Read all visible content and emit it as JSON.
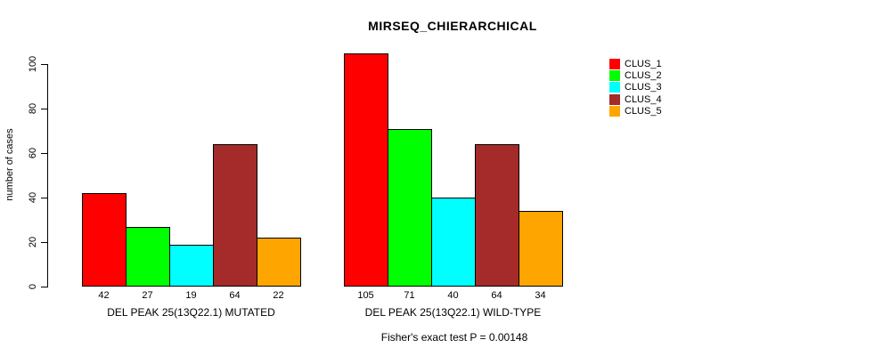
{
  "chart_data": {
    "type": "bar",
    "title": "MIRSEQ_CHIERARCHICAL",
    "ylabel": "number of cases",
    "xlabel": "",
    "annotation": "Fisher's exact test P = 0.00148",
    "series": [
      {
        "name": "CLUS_1",
        "color": "#FF0000"
      },
      {
        "name": "CLUS_2",
        "color": "#00FF00"
      },
      {
        "name": "CLUS_3",
        "color": "#00FFFF"
      },
      {
        "name": "CLUS_4",
        "color": "#A52A2A"
      },
      {
        "name": "CLUS_5",
        "color": "#FFA500"
      }
    ],
    "groups": [
      {
        "label": "DEL PEAK 25(13Q22.1) MUTATED",
        "values": [
          42,
          27,
          19,
          64,
          22
        ]
      },
      {
        "label": "DEL PEAK 25(13Q22.1) WILD-TYPE",
        "values": [
          105,
          71,
          40,
          64,
          34
        ]
      }
    ],
    "yticks": [
      0,
      20,
      40,
      60,
      80,
      100
    ],
    "ylim": [
      0,
      100
    ],
    "grid": false,
    "legend_position": "right-outside",
    "bar_border_color": "#000000",
    "axis_color": "#000000",
    "background_color": "#FFFFFF"
  }
}
